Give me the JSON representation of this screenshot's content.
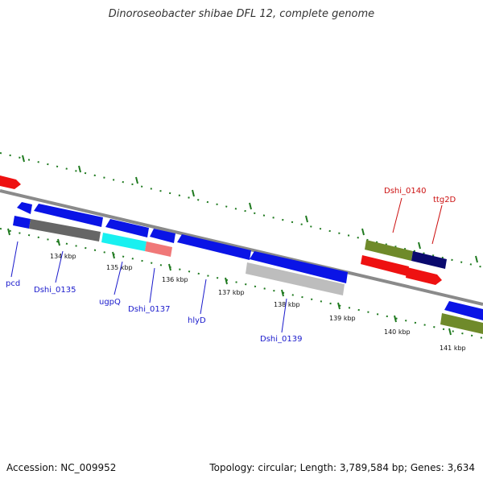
{
  "title": "Dinoroseobacter shibae DFL 12, complete genome",
  "footer": {
    "accession": "Accession: NC_009952",
    "stats": "Topology: circular; Length: 3,789,584 bp; Genes: 3,634"
  },
  "colors": {
    "backbone": "#8a8a8a",
    "tick": "#1f7a1f",
    "blue": "#0a14e6",
    "red": "#ee1111",
    "olive": "#6f8a2a",
    "navy": "#0a0a6e",
    "gray_dark": "#666666",
    "gray_light": "#bdbdbd",
    "cyan": "#19f0f0",
    "salmon": "#f07878",
    "label_blue": "#1a1acc",
    "label_red": "#cc1111"
  },
  "kbp_labels": [
    "134 kbp",
    "135 kbp",
    "136 kbp",
    "137 kbp",
    "138 kbp",
    "139 kbp",
    "140 kbp",
    "141 kbp"
  ],
  "gene_labels": [
    "pcd",
    "Dshi_0135",
    "ugpQ",
    "Dshi_0137",
    "hlyD",
    "Dshi_0139",
    "Dshi_0140",
    "ttg2D"
  ]
}
